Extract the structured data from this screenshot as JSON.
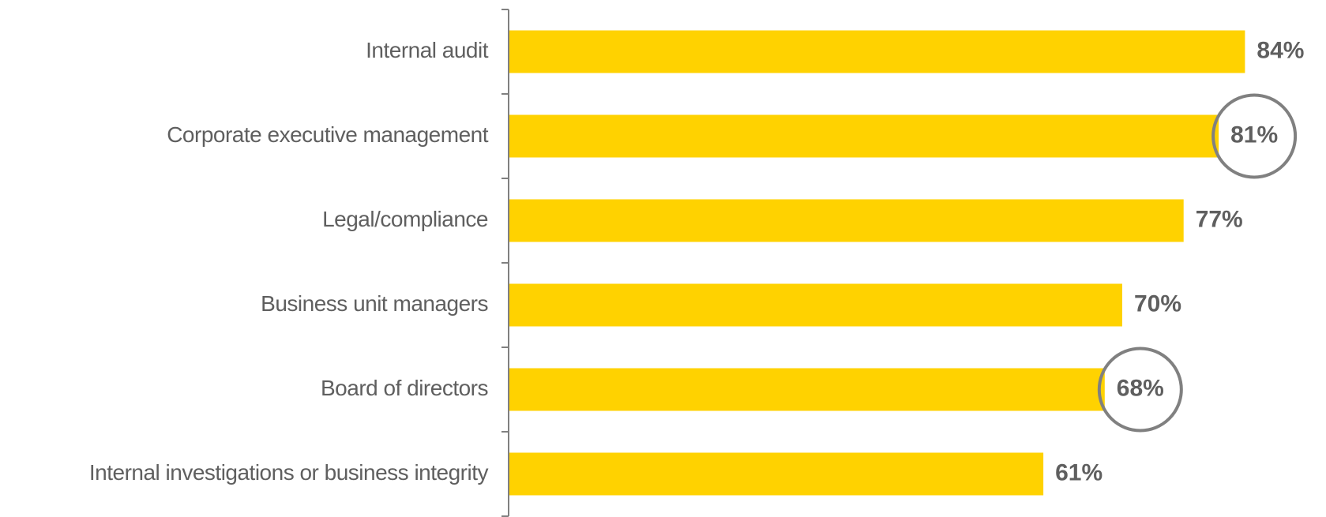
{
  "chart_data": {
    "type": "hbar",
    "categories": [
      "Internal audit",
      "Corporate executive management",
      "Legal/compliance",
      "Business unit managers",
      "Board of directors",
      "Internal investigations or business integrity"
    ],
    "values": [
      84,
      81,
      77,
      70,
      68,
      61
    ],
    "value_labels": [
      "84%",
      "81%",
      "77%",
      "70%",
      "68%",
      "61%"
    ],
    "color": "#ffd200",
    "highlight": [
      1,
      4
    ]
  }
}
